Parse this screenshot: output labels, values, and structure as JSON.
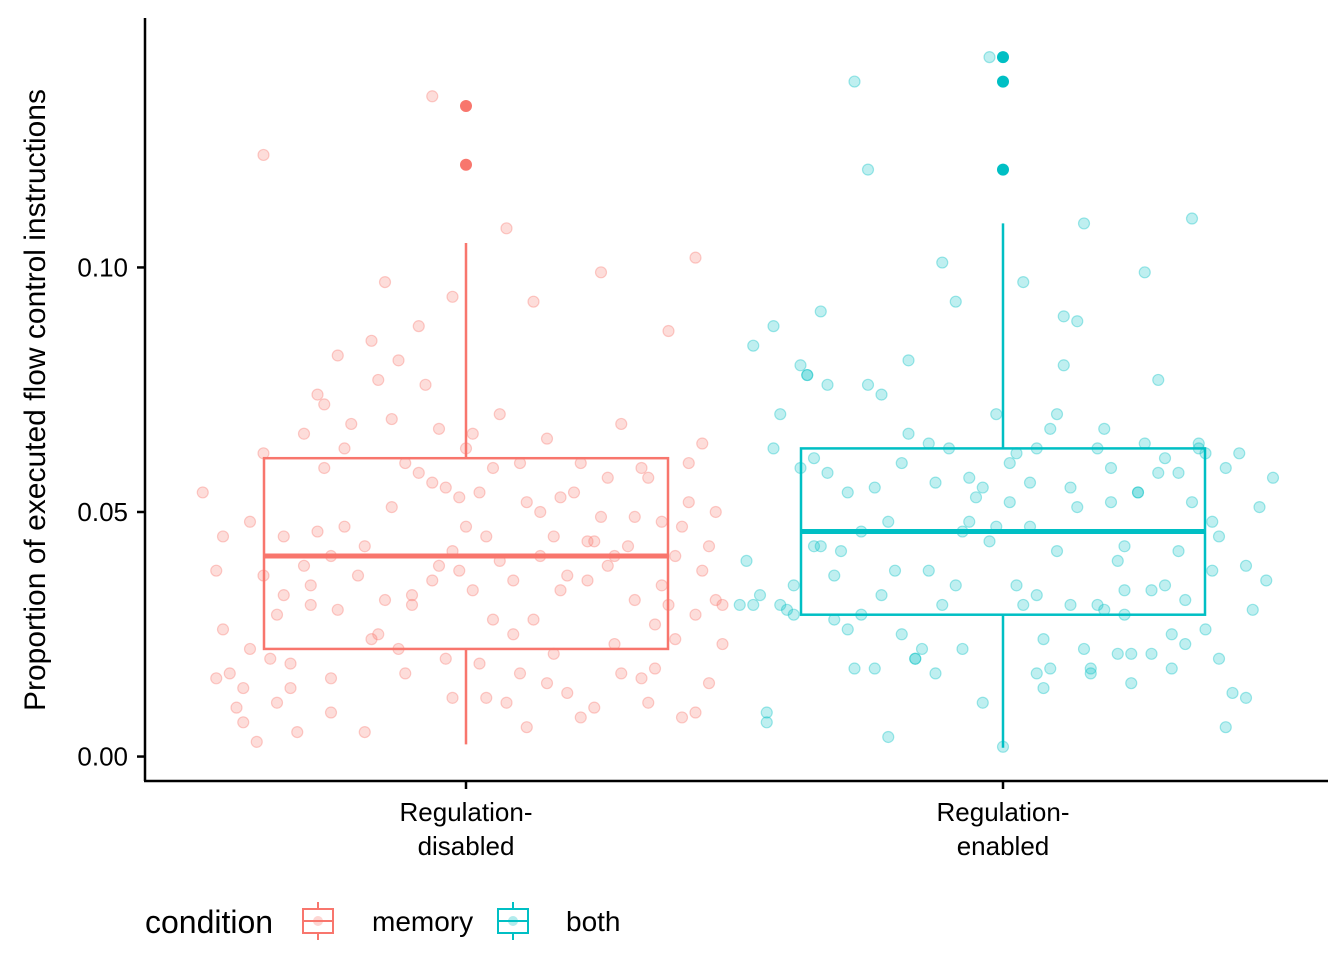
{
  "chart_data": {
    "type": "boxplot",
    "title": "",
    "xlabel": "",
    "ylabel": "Proportion of executed flow control instructions",
    "ylim": [
      -0.005,
      0.151
    ],
    "yticks": [
      {
        "value": 0.0,
        "label": "0.00"
      },
      {
        "value": 0.05,
        "label": "0.05"
      },
      {
        "value": 0.1,
        "label": "0.10"
      }
    ],
    "categories": [
      {
        "id": "disabled",
        "label_lines": [
          "Regulation-",
          "disabled"
        ]
      },
      {
        "id": "enabled",
        "label_lines": [
          "Regulation-",
          "enabled"
        ]
      }
    ],
    "legend": {
      "title": "condition",
      "placement": "bottom",
      "items": [
        {
          "label": "memory",
          "color": "#F8766D"
        },
        {
          "label": "both",
          "color": "#00BFC4"
        }
      ]
    },
    "grid": false,
    "series": [
      {
        "name": "memory",
        "category": "disabled",
        "color": "#F8766D",
        "box": {
          "q1": 0.022,
          "median": 0.041,
          "q3": 0.061,
          "whisker_low": 0.0025,
          "whisker_high": 0.105
        },
        "outliers": [
          0.133,
          0.121
        ],
        "points": [
          [
            -0.39,
            0.054
          ],
          [
            -0.37,
            0.038
          ],
          [
            -0.37,
            0.016
          ],
          [
            -0.36,
            0.045
          ],
          [
            -0.35,
            0.017
          ],
          [
            -0.34,
            0.01
          ],
          [
            -0.33,
            0.014
          ],
          [
            -0.32,
            0.048
          ],
          [
            -0.32,
            0.022
          ],
          [
            -0.3,
            0.037
          ],
          [
            -0.29,
            0.02
          ],
          [
            -0.28,
            0.029
          ],
          [
            -0.27,
            0.033
          ],
          [
            -0.26,
            0.014
          ],
          [
            -0.25,
            0.005
          ],
          [
            -0.24,
            0.039
          ],
          [
            -0.23,
            0.031
          ],
          [
            -0.22,
            0.046
          ],
          [
            -0.21,
            0.059
          ],
          [
            -0.21,
            0.072
          ],
          [
            -0.2,
            0.016
          ],
          [
            -0.19,
            0.03
          ],
          [
            -0.18,
            0.063
          ],
          [
            -0.16,
            0.037
          ],
          [
            -0.15,
            0.043
          ],
          [
            -0.14,
            0.024
          ],
          [
            -0.13,
            0.077
          ],
          [
            -0.12,
            0.032
          ],
          [
            -0.11,
            0.051
          ],
          [
            -0.1,
            0.022
          ],
          [
            -0.09,
            0.06
          ],
          [
            -0.08,
            0.031
          ],
          [
            -0.07,
            0.058
          ],
          [
            -0.06,
            0.076
          ],
          [
            -0.05,
            0.056
          ],
          [
            -0.04,
            0.039
          ],
          [
            -0.03,
            0.055
          ],
          [
            -0.02,
            0.012
          ],
          [
            -0.01,
            0.038
          ],
          [
            0.0,
            0.047
          ],
          [
            0.01,
            0.034
          ],
          [
            0.02,
            0.019
          ],
          [
            0.03,
            0.045
          ],
          [
            0.04,
            0.059
          ],
          [
            0.05,
            0.07
          ],
          [
            0.06,
            0.011
          ],
          [
            0.07,
            0.036
          ],
          [
            0.08,
            0.017
          ],
          [
            0.09,
            0.052
          ],
          [
            0.1,
            0.028
          ],
          [
            0.11,
            0.041
          ],
          [
            0.12,
            0.065
          ],
          [
            0.13,
            0.045
          ],
          [
            0.14,
            0.034
          ],
          [
            0.15,
            0.013
          ],
          [
            0.16,
            0.054
          ],
          [
            0.17,
            0.06
          ],
          [
            0.18,
            0.044
          ],
          [
            0.19,
            0.01
          ],
          [
            0.2,
            0.049
          ],
          [
            0.21,
            0.039
          ],
          [
            0.22,
            0.023
          ],
          [
            0.23,
            0.068
          ],
          [
            0.24,
            0.043
          ],
          [
            0.25,
            0.032
          ],
          [
            0.26,
            0.016
          ],
          [
            0.27,
            0.057
          ],
          [
            0.28,
            0.018
          ],
          [
            0.29,
            0.048
          ],
          [
            0.3,
            0.031
          ],
          [
            0.31,
            0.041
          ],
          [
            0.32,
            0.008
          ],
          [
            0.33,
            0.06
          ],
          [
            0.34,
            0.029
          ],
          [
            0.35,
            0.038
          ],
          [
            0.36,
            0.015
          ],
          [
            0.37,
            0.05
          ],
          [
            0.38,
            0.023
          ],
          [
            -0.36,
            0.026
          ],
          [
            -0.33,
            0.007
          ],
          [
            -0.3,
            0.062
          ],
          [
            -0.28,
            0.011
          ],
          [
            -0.26,
            0.019
          ],
          [
            -0.24,
            0.066
          ],
          [
            -0.22,
            0.074
          ],
          [
            -0.2,
            0.009
          ],
          [
            -0.18,
            0.047
          ],
          [
            -0.15,
            0.005
          ],
          [
            -0.13,
            0.025
          ],
          [
            -0.11,
            0.069
          ],
          [
            -0.09,
            0.017
          ],
          [
            -0.07,
            0.088
          ],
          [
            -0.05,
            0.036
          ],
          [
            -0.03,
            0.02
          ],
          [
            -0.01,
            0.053
          ],
          [
            0.01,
            0.066
          ],
          [
            0.03,
            0.012
          ],
          [
            0.05,
            0.04
          ],
          [
            0.07,
            0.025
          ],
          [
            0.09,
            0.006
          ],
          [
            0.11,
            0.05
          ],
          [
            0.13,
            0.021
          ],
          [
            0.15,
            0.037
          ],
          [
            0.17,
            0.008
          ],
          [
            0.19,
            0.044
          ],
          [
            0.21,
            0.057
          ],
          [
            0.23,
            0.017
          ],
          [
            0.25,
            0.049
          ],
          [
            0.27,
            0.011
          ],
          [
            0.29,
            0.035
          ],
          [
            0.31,
            0.024
          ],
          [
            0.33,
            0.052
          ],
          [
            0.35,
            0.064
          ],
          [
            0.37,
            0.032
          ],
          [
            -0.31,
            0.003
          ],
          [
            -0.27,
            0.045
          ],
          [
            -0.23,
            0.035
          ],
          [
            -0.19,
            0.082
          ],
          [
            -0.17,
            0.068
          ],
          [
            -0.14,
            0.085
          ],
          [
            -0.1,
            0.081
          ],
          [
            -0.08,
            0.033
          ],
          [
            -0.04,
            0.067
          ],
          [
            -0.02,
            0.042
          ],
          [
            0.02,
            0.054
          ],
          [
            0.04,
            0.028
          ],
          [
            0.08,
            0.06
          ],
          [
            0.12,
            0.015
          ],
          [
            0.14,
            0.053
          ],
          [
            0.18,
            0.036
          ],
          [
            0.22,
            0.041
          ],
          [
            0.26,
            0.059
          ],
          [
            0.28,
            0.027
          ],
          [
            0.32,
            0.047
          ],
          [
            0.34,
            0.009
          ],
          [
            0.36,
            0.043
          ],
          [
            0.38,
            0.031
          ],
          [
            -0.12,
            0.097
          ],
          [
            -0.02,
            0.094
          ],
          [
            0.06,
            0.108
          ],
          [
            0.1,
            0.093
          ],
          [
            0.2,
            0.099
          ],
          [
            0.3,
            0.087
          ],
          [
            0.34,
            0.102
          ],
          [
            -0.3,
            0.123
          ],
          [
            -0.05,
            0.135
          ],
          [
            0.0,
            0.063
          ],
          [
            -0.2,
            0.041
          ]
        ]
      },
      {
        "name": "both",
        "category": "enabled",
        "color": "#00BFC4",
        "box": {
          "q1": 0.029,
          "median": 0.046,
          "q3": 0.063,
          "whisker_low": 0.0018,
          "whisker_high": 0.109
        },
        "outliers": [
          0.143,
          0.138,
          0.12
        ],
        "points": [
          [
            -0.39,
            0.031
          ],
          [
            -0.38,
            0.04
          ],
          [
            -0.37,
            0.084
          ],
          [
            -0.36,
            0.033
          ],
          [
            -0.35,
            0.009
          ],
          [
            -0.34,
            0.063
          ],
          [
            -0.33,
            0.07
          ],
          [
            -0.32,
            0.03
          ],
          [
            -0.31,
            0.035
          ],
          [
            -0.3,
            0.059
          ],
          [
            -0.29,
            0.078
          ],
          [
            -0.28,
            0.043
          ],
          [
            -0.27,
            0.091
          ],
          [
            -0.26,
            0.058
          ],
          [
            -0.25,
            0.037
          ],
          [
            -0.24,
            0.042
          ],
          [
            -0.23,
            0.026
          ],
          [
            -0.22,
            0.018
          ],
          [
            -0.21,
            0.046
          ],
          [
            -0.2,
            0.076
          ],
          [
            -0.19,
            0.055
          ],
          [
            -0.18,
            0.033
          ],
          [
            -0.17,
            0.004
          ],
          [
            -0.16,
            0.038
          ],
          [
            -0.15,
            0.06
          ],
          [
            -0.14,
            0.066
          ],
          [
            -0.13,
            0.02
          ],
          [
            -0.12,
            0.022
          ],
          [
            -0.11,
            0.064
          ],
          [
            -0.1,
            0.017
          ],
          [
            -0.09,
            0.031
          ],
          [
            -0.08,
            0.063
          ],
          [
            -0.07,
            0.035
          ],
          [
            -0.06,
            0.022
          ],
          [
            -0.05,
            0.048
          ],
          [
            -0.04,
            0.053
          ],
          [
            -0.03,
            0.011
          ],
          [
            -0.02,
            0.044
          ],
          [
            -0.01,
            0.07
          ],
          [
            0.0,
            0.002
          ],
          [
            0.01,
            0.052
          ],
          [
            0.02,
            0.062
          ],
          [
            0.03,
            0.031
          ],
          [
            0.04,
            0.056
          ],
          [
            0.05,
            0.017
          ],
          [
            0.06,
            0.024
          ],
          [
            0.07,
            0.067
          ],
          [
            0.08,
            0.07
          ],
          [
            0.09,
            0.08
          ],
          [
            0.1,
            0.031
          ],
          [
            0.11,
            0.051
          ],
          [
            0.12,
            0.022
          ],
          [
            0.13,
            0.018
          ],
          [
            0.14,
            0.063
          ],
          [
            0.15,
            0.03
          ],
          [
            0.16,
            0.059
          ],
          [
            0.17,
            0.04
          ],
          [
            0.18,
            0.034
          ],
          [
            0.19,
            0.015
          ],
          [
            0.2,
            0.054
          ],
          [
            0.21,
            0.064
          ],
          [
            0.22,
            0.021
          ],
          [
            0.23,
            0.058
          ],
          [
            0.24,
            0.035
          ],
          [
            0.25,
            0.018
          ],
          [
            0.26,
            0.042
          ],
          [
            0.27,
            0.032
          ],
          [
            0.28,
            0.052
          ],
          [
            0.29,
            0.064
          ],
          [
            0.3,
            0.026
          ],
          [
            0.31,
            0.048
          ],
          [
            0.32,
            0.02
          ],
          [
            0.33,
            0.059
          ],
          [
            0.34,
            0.013
          ],
          [
            0.35,
            0.062
          ],
          [
            0.36,
            0.039
          ],
          [
            0.37,
            0.03
          ],
          [
            0.38,
            0.051
          ],
          [
            0.39,
            0.036
          ],
          [
            0.4,
            0.057
          ],
          [
            -0.37,
            0.031
          ],
          [
            -0.35,
            0.007
          ],
          [
            -0.33,
            0.031
          ],
          [
            -0.31,
            0.029
          ],
          [
            -0.29,
            0.078
          ],
          [
            -0.27,
            0.043
          ],
          [
            -0.25,
            0.028
          ],
          [
            -0.23,
            0.054
          ],
          [
            -0.21,
            0.029
          ],
          [
            -0.19,
            0.018
          ],
          [
            -0.17,
            0.048
          ],
          [
            -0.15,
            0.025
          ],
          [
            -0.13,
            0.02
          ],
          [
            -0.11,
            0.038
          ],
          [
            -0.09,
            0.101
          ],
          [
            -0.07,
            0.093
          ],
          [
            -0.05,
            0.057
          ],
          [
            -0.03,
            0.055
          ],
          [
            -0.01,
            0.047
          ],
          [
            0.01,
            0.06
          ],
          [
            0.03,
            0.097
          ],
          [
            0.05,
            0.033
          ],
          [
            0.07,
            0.018
          ],
          [
            0.09,
            0.09
          ],
          [
            0.11,
            0.089
          ],
          [
            0.13,
            0.017
          ],
          [
            0.15,
            0.067
          ],
          [
            0.17,
            0.021
          ],
          [
            0.19,
            0.021
          ],
          [
            0.21,
            0.099
          ],
          [
            0.23,
            0.077
          ],
          [
            0.25,
            0.025
          ],
          [
            0.27,
            0.023
          ],
          [
            0.29,
            0.063
          ],
          [
            0.31,
            0.038
          ],
          [
            0.33,
            0.006
          ],
          [
            -0.34,
            0.088
          ],
          [
            -0.3,
            0.08
          ],
          [
            -0.26,
            0.076
          ],
          [
            -0.22,
            0.138
          ],
          [
            -0.2,
            0.12
          ],
          [
            -0.18,
            0.074
          ],
          [
            -0.14,
            0.081
          ],
          [
            -0.06,
            0.046
          ],
          [
            0.02,
            0.035
          ],
          [
            0.04,
            0.047
          ],
          [
            0.06,
            0.014
          ],
          [
            0.08,
            0.042
          ],
          [
            0.1,
            0.055
          ],
          [
            0.12,
            0.109
          ],
          [
            0.14,
            0.031
          ],
          [
            0.16,
            0.052
          ],
          [
            0.18,
            0.043
          ],
          [
            0.2,
            0.054
          ],
          [
            0.22,
            0.034
          ],
          [
            0.24,
            0.061
          ],
          [
            0.26,
            0.058
          ],
          [
            0.28,
            0.11
          ],
          [
            0.3,
            0.062
          ],
          [
            0.32,
            0.045
          ],
          [
            -0.02,
            0.143
          ],
          [
            0.05,
            0.063
          ],
          [
            -0.28,
            0.061
          ],
          [
            0.18,
            0.029
          ],
          [
            -0.1,
            0.056
          ],
          [
            0.36,
            0.012
          ]
        ]
      }
    ]
  }
}
